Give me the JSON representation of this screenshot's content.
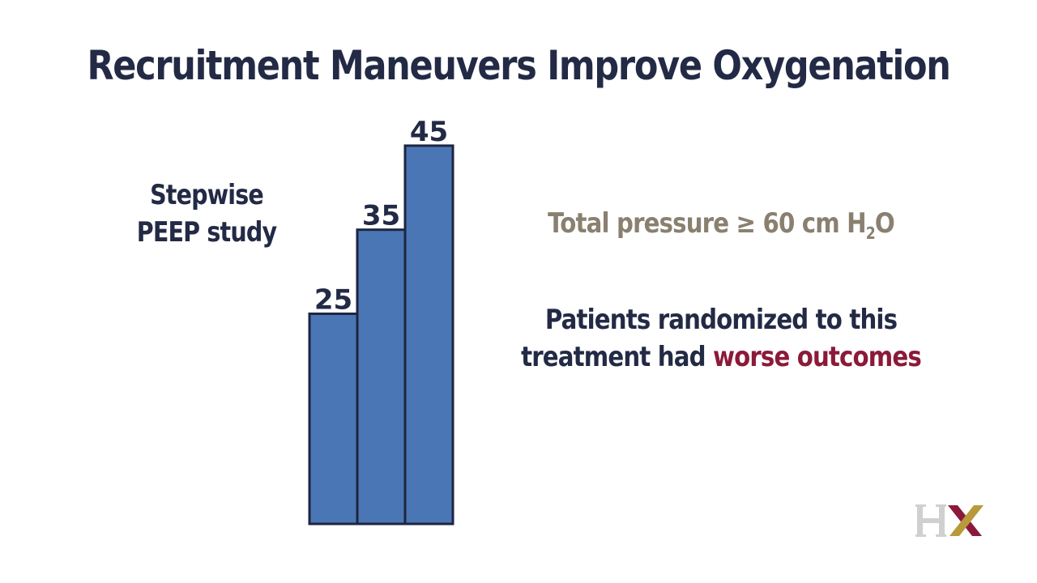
{
  "slide": {
    "title": "Recruitment Maneuvers Improve Oxygenation",
    "study_label_line1": "Stepwise",
    "study_label_line2": "PEEP study"
  },
  "chart_data": {
    "type": "bar",
    "categories": [
      "25",
      "35",
      "45"
    ],
    "values": [
      25,
      35,
      45
    ],
    "data_labels": [
      "25",
      "35",
      "45"
    ],
    "title": "",
    "xlabel": "",
    "ylabel": "",
    "ylim": [
      0,
      50
    ],
    "grid": false,
    "bar_color": "#4a76b5",
    "bar_edge_color": "#1f2540"
  },
  "notes": {
    "pressure_prefix": "Total pressure ≥ 60 cm H",
    "pressure_subscript": "2",
    "pressure_suffix": "O",
    "outcome_line1": "Patients randomized to this",
    "outcome_line2_prefix": "treatment had ",
    "outcome_highlight": "worse outcomes"
  },
  "colors": {
    "title": "#232a45",
    "pressure_text": "#8a8070",
    "highlight": "#8b1a3a",
    "logo_gray": "#d0d0d0",
    "logo_red": "#8b1a3a",
    "logo_gold": "#b89a3a"
  },
  "logo": {
    "text": "HX"
  }
}
